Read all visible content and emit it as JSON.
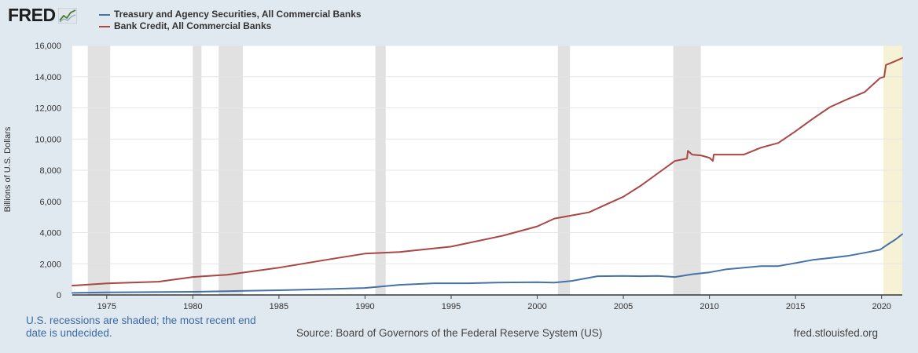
{
  "logo": {
    "text": "FRED"
  },
  "colors": {
    "background": "#e1e9f0",
    "plot_bg": "#ffffff",
    "recession": "#e1e1e1",
    "recent_recession": "#f5f2d6",
    "series1": "#4572a7",
    "series2": "#aa4643"
  },
  "footer": {
    "note": "U.S. recessions are shaded; the most recent end date is undecided.",
    "source": "Source: Board of Governors of the Federal Reserve System (US)",
    "url": "fred.stlouisfed.org"
  },
  "chart_data": {
    "type": "line",
    "ylabel": "Billions of U.S. Dollars",
    "ylim": [
      0,
      16000
    ],
    "xlim": [
      1973.0,
      2021.2
    ],
    "yticks": [
      0,
      2000,
      4000,
      6000,
      8000,
      10000,
      12000,
      14000,
      16000
    ],
    "ytick_labels": [
      "0",
      "2,000",
      "4,000",
      "6,000",
      "8,000",
      "10,000",
      "12,000",
      "14,000",
      "16,000"
    ],
    "xticks": [
      1975,
      1980,
      1985,
      1990,
      1995,
      2000,
      2005,
      2010,
      2015,
      2020
    ],
    "xtick_labels": [
      "1975",
      "1980",
      "1985",
      "1990",
      "1995",
      "2000",
      "2005",
      "2010",
      "2015",
      "2020"
    ],
    "grid": true,
    "legend_position": "top-left",
    "recessions": [
      {
        "start": 1973.9,
        "end": 1975.2
      },
      {
        "start": 1980.0,
        "end": 1980.5
      },
      {
        "start": 1981.5,
        "end": 1982.9
      },
      {
        "start": 1990.6,
        "end": 1991.2
      },
      {
        "start": 2001.2,
        "end": 2001.9
      },
      {
        "start": 2007.9,
        "end": 2009.5
      },
      {
        "start": 2020.1,
        "end": 2021.2,
        "undecided": true
      }
    ],
    "series": [
      {
        "name": "Treasury and Agency Securities, All Commercial Banks",
        "color": "#4572a7",
        "x": [
          1973.0,
          1975,
          1980,
          1983,
          1985,
          1988,
          1990,
          1992,
          1994,
          1996,
          1998,
          2000,
          2001,
          2002,
          2003,
          2003.5,
          2005,
          2006,
          2007,
          2008,
          2009,
          2010,
          2011,
          2012,
          2013,
          2014,
          2015,
          2016,
          2017,
          2018,
          2019,
          2019.9,
          2020.3,
          2020.8,
          2021.2
        ],
        "values": [
          130,
          160,
          200,
          260,
          300,
          380,
          450,
          650,
          750,
          750,
          800,
          820,
          790,
          900,
          1100,
          1200,
          1220,
          1200,
          1220,
          1150,
          1330,
          1450,
          1650,
          1750,
          1850,
          1850,
          2050,
          2250,
          2370,
          2500,
          2700,
          2900,
          3200,
          3550,
          3900
        ]
      },
      {
        "name": "Bank Credit, All Commercial Banks",
        "color": "#aa4643",
        "x": [
          1973.0,
          1975,
          1978,
          1980,
          1982,
          1985,
          1988,
          1990,
          1992,
          1995,
          1998,
          2000,
          2001,
          2002,
          2003,
          2004,
          2005,
          2006,
          2007,
          2008,
          2008.7,
          2008.75,
          2009.0,
          2009.5,
          2010.0,
          2010.2,
          2010.25,
          2011,
          2012,
          2013,
          2014,
          2015,
          2016,
          2017,
          2018,
          2019,
          2019.9,
          2020.15,
          2020.25,
          2020.8,
          2021.2
        ],
        "values": [
          600,
          740,
          850,
          1150,
          1300,
          1750,
          2300,
          2650,
          2750,
          3100,
          3800,
          4400,
          4900,
          5100,
          5300,
          5800,
          6300,
          7000,
          7800,
          8600,
          8750,
          9250,
          9000,
          8950,
          8800,
          8600,
          9000,
          9000,
          9000,
          9450,
          9750,
          10500,
          11300,
          12050,
          12550,
          13000,
          13900,
          14000,
          14750,
          15000,
          15200
        ]
      }
    ]
  }
}
